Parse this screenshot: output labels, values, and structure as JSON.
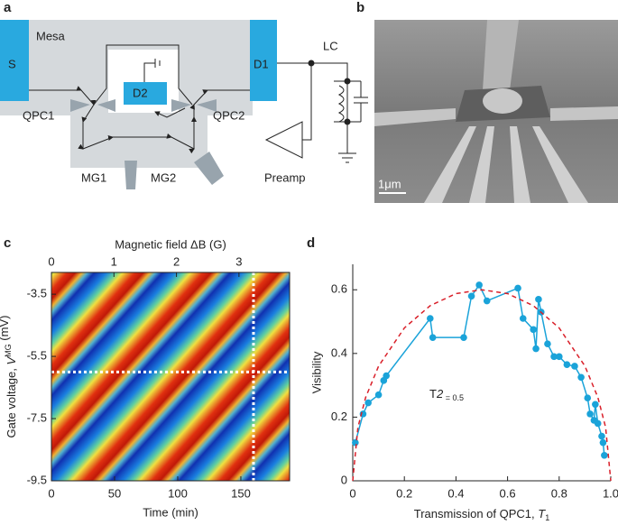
{
  "panels": {
    "a": "a",
    "b": "b",
    "c": "c",
    "d": "d"
  },
  "diagram": {
    "mesa": "Mesa",
    "source": "S",
    "drain1": "D1",
    "drain2": "D2",
    "qpc1": "QPC1",
    "qpc2": "QPC2",
    "mg1": "MG1",
    "mg2": "MG2",
    "lc": "LC",
    "preamp": "Preamp"
  },
  "micrograph": {
    "scale": "1μm"
  },
  "chart_data": [
    {
      "type": "heatmap",
      "xlabel": "Time (min)",
      "xlim": [
        0,
        188.6
      ],
      "xticks": [
        0,
        50,
        100,
        150
      ],
      "x2label": "Magnetic field ΔB (G)",
      "x2lim": [
        0,
        3.81
      ],
      "x2ticks": [
        0,
        1,
        2,
        3
      ],
      "ylabel_parts": [
        "Gate voltage, ",
        "V",
        "MG",
        " (mV)"
      ],
      "ylim": [
        -9.5,
        -2.8
      ],
      "yticks": [
        -3.5,
        -5.5,
        -7.5,
        -9.5
      ],
      "cut_x": 160,
      "cut_y": -6.0
    },
    {
      "type": "line",
      "xlabel_parts": [
        "Transmission of QPC1, ",
        "T",
        "1"
      ],
      "ylabel": "Visibility",
      "xlim": [
        0,
        1
      ],
      "xticks": [
        0,
        0.2,
        0.4,
        0.6,
        0.8,
        {
          "value": 1,
          "label": "1.0"
        }
      ],
      "ylim": [
        0,
        0.68
      ],
      "yticks": [
        0,
        0.2,
        0.4,
        0.6
      ],
      "annotation_parts": [
        "T",
        "2",
        " = 0.5"
      ],
      "series": [
        {
          "color": "#1aa3d9",
          "x": [
            0.01,
            0.04,
            0.06,
            0.1,
            0.12,
            0.13,
            0.3,
            0.31,
            0.43,
            0.46,
            0.49,
            0.52,
            0.64,
            0.66,
            0.7,
            0.71,
            0.72,
            0.73,
            0.755,
            0.78,
            0.8,
            0.83,
            0.86,
            0.885,
            0.91,
            0.92,
            0.935,
            0.94,
            0.95,
            0.965,
            0.97,
            0.975
          ],
          "values": [
            0.12,
            0.21,
            0.245,
            0.27,
            0.315,
            0.33,
            0.51,
            0.45,
            0.45,
            0.58,
            0.615,
            0.565,
            0.605,
            0.51,
            0.475,
            0.415,
            0.57,
            0.53,
            0.43,
            0.39,
            0.39,
            0.365,
            0.36,
            0.325,
            0.26,
            0.21,
            0.19,
            0.24,
            0.18,
            0.14,
            0.12,
            0.08
          ]
        },
        {
          "color": "#d9202a",
          "dashed": true,
          "x": [
            0,
            0.02,
            0.05,
            0.1,
            0.2,
            0.3,
            0.4,
            0.5,
            0.6,
            0.7,
            0.8,
            0.9,
            0.95,
            0.98,
            1
          ],
          "values": [
            0,
            0.168,
            0.262,
            0.36,
            0.48,
            0.55,
            0.588,
            0.6,
            0.588,
            0.55,
            0.48,
            0.36,
            0.262,
            0.168,
            0
          ]
        }
      ]
    }
  ]
}
